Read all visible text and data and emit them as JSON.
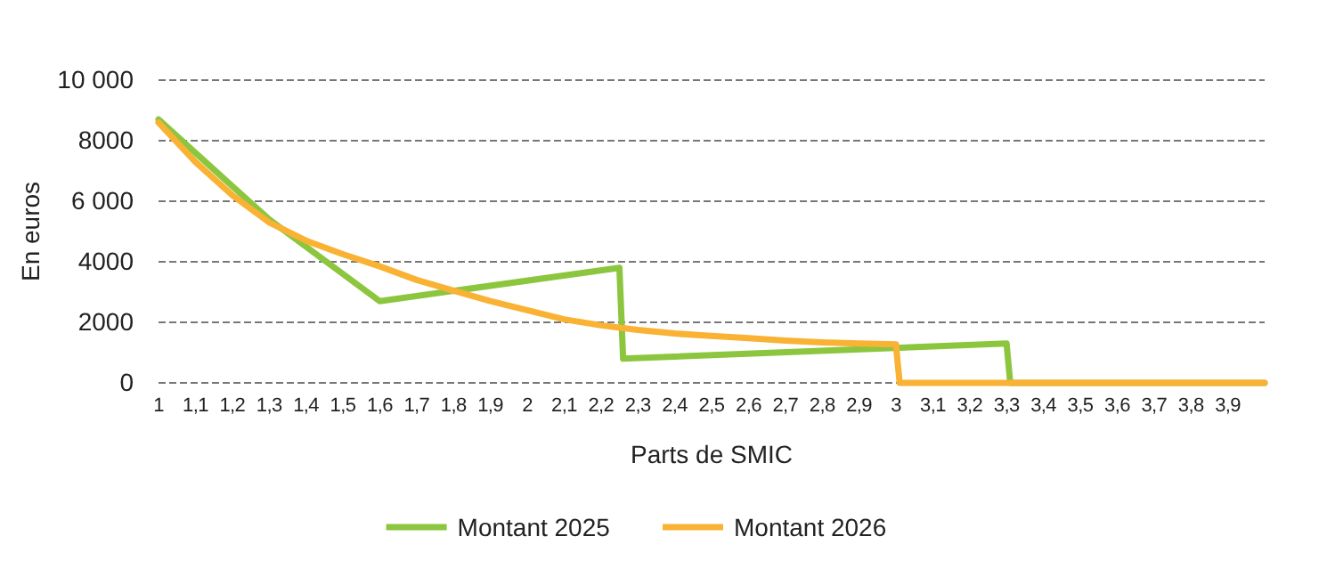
{
  "chart_data": {
    "type": "line",
    "xlabel": "Parts de SMIC",
    "ylabel": "En euros",
    "xlim": [
      1,
      4
    ],
    "xticks": [
      1,
      {
        "value": 1.1,
        "label": "1,1"
      },
      {
        "value": 1.2,
        "label": "1,2"
      },
      {
        "value": 1.3,
        "label": "1,3"
      },
      {
        "value": 1.4,
        "label": "1,4"
      },
      {
        "value": 1.5,
        "label": "1,5"
      },
      {
        "value": 1.6,
        "label": "1,6"
      },
      {
        "value": 1.7,
        "label": "1,7"
      },
      {
        "value": 1.8,
        "label": "1,8"
      },
      {
        "value": 1.9,
        "label": "1,9"
      },
      2,
      {
        "value": 2.1,
        "label": "2,1"
      },
      {
        "value": 2.2,
        "label": "2,2"
      },
      {
        "value": 2.3,
        "label": "2,3"
      },
      {
        "value": 2.4,
        "label": "2,4"
      },
      {
        "value": 2.5,
        "label": "2,5"
      },
      {
        "value": 2.6,
        "label": "2,6"
      },
      {
        "value": 2.7,
        "label": "2,7"
      },
      {
        "value": 2.8,
        "label": "2,8"
      },
      {
        "value": 2.9,
        "label": "2,9"
      },
      3,
      {
        "value": 3.1,
        "label": "3,1"
      },
      {
        "value": 3.2,
        "label": "3,2"
      },
      {
        "value": 3.3,
        "label": "3,3"
      },
      {
        "value": 3.4,
        "label": "3,4"
      },
      {
        "value": 3.5,
        "label": "3,5"
      },
      {
        "value": 3.6,
        "label": "3,6"
      },
      {
        "value": 3.7,
        "label": "3,7"
      },
      {
        "value": 3.8,
        "label": "3,8"
      },
      {
        "value": 3.9,
        "label": "3,9"
      }
    ],
    "ylim": [
      0,
      10000
    ],
    "yticks": [
      0,
      {
        "value": 2000,
        "label": "2000"
      },
      {
        "value": 4000,
        "label": "4000"
      },
      {
        "value": 6000,
        "label": "6 000"
      },
      {
        "value": 8000,
        "label": "8000"
      },
      {
        "value": 10000,
        "label": "10 000"
      }
    ],
    "grid": "y",
    "legend": "bottom",
    "line_style": "solid",
    "marker": "none",
    "series": [
      {
        "name": "Montant 2025",
        "color": "#8cc63f",
        "x": [
          1,
          1.3,
          1.6,
          2.25,
          2.26,
          3.3,
          3.31,
          4
        ],
        "values": [
          8700,
          5400,
          2700,
          3800,
          800,
          1300,
          0,
          0
        ]
      },
      {
        "name": "Montant 2026",
        "color": "#f9b233",
        "x": [
          1,
          1.1,
          1.2,
          1.3,
          1.4,
          1.5,
          1.6,
          1.7,
          1.8,
          1.9,
          2,
          2.1,
          2.2,
          2.3,
          2.4,
          2.5,
          2.6,
          2.7,
          2.8,
          2.9,
          3,
          3.01,
          4
        ],
        "values": [
          8600,
          7300,
          6200,
          5300,
          4700,
          4250,
          3850,
          3400,
          3050,
          2700,
          2400,
          2100,
          1900,
          1750,
          1630,
          1550,
          1480,
          1400,
          1340,
          1300,
          1270,
          0,
          0
        ]
      }
    ]
  }
}
